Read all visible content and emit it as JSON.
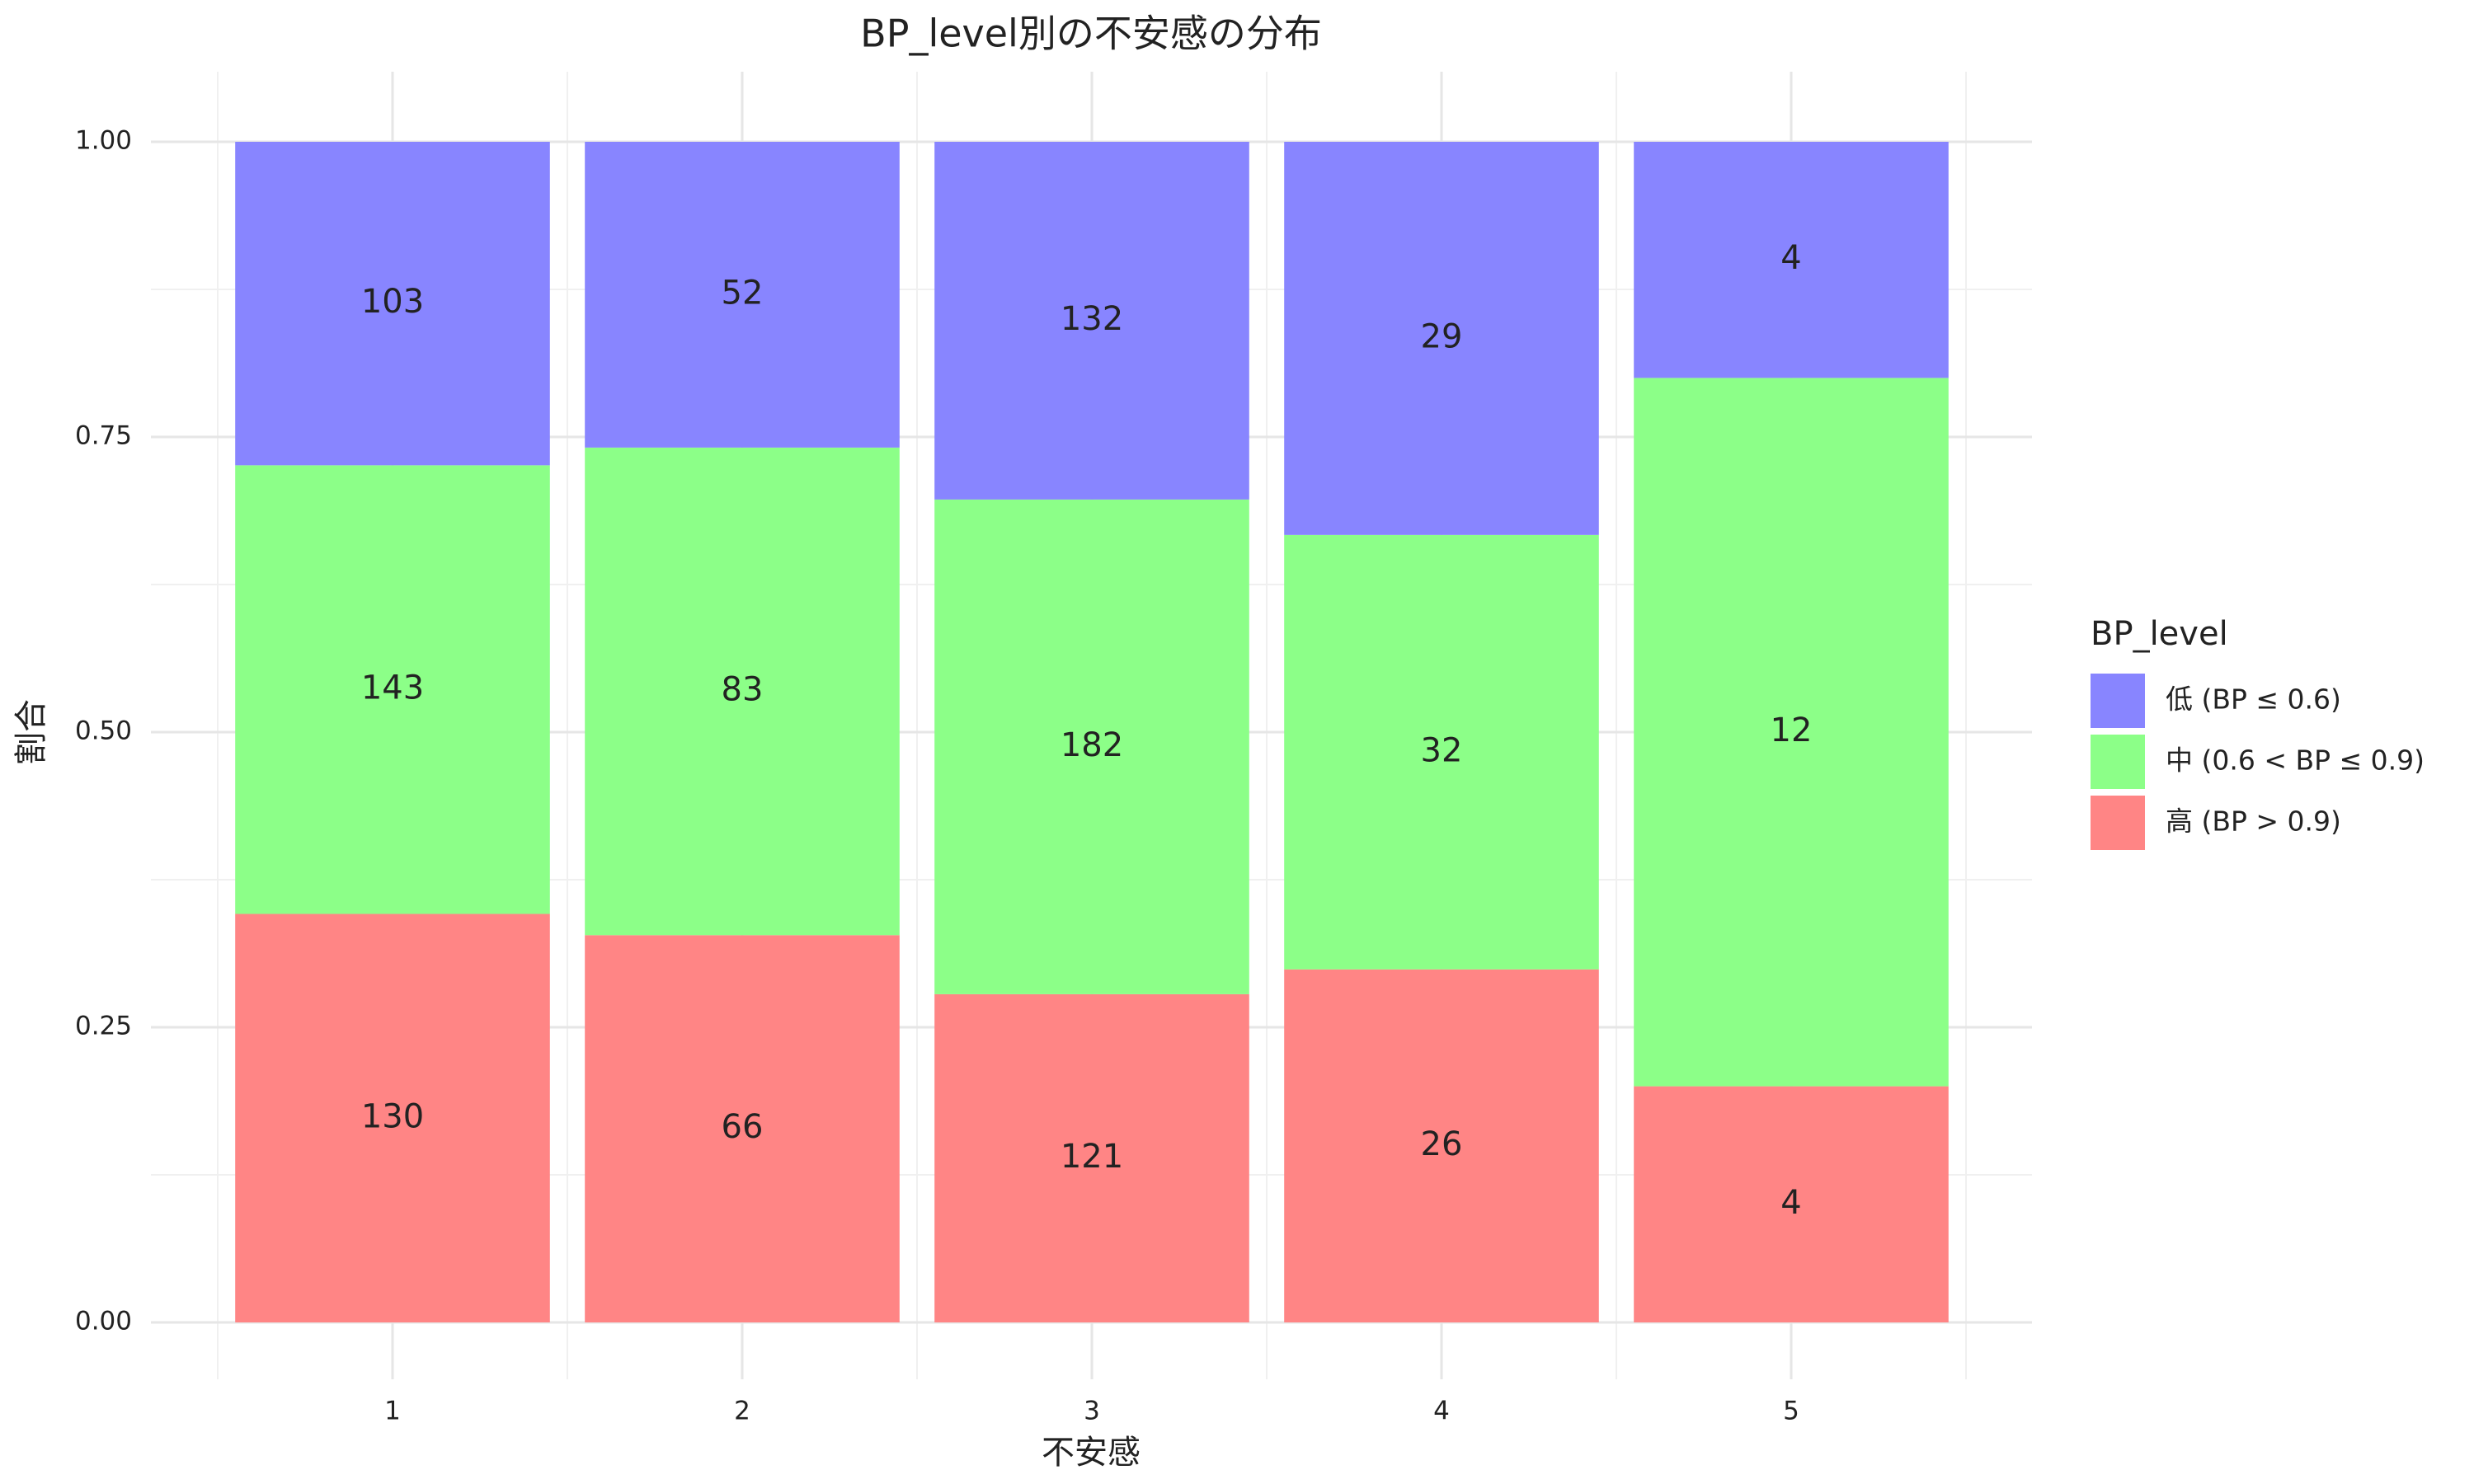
{
  "chart_data": {
    "type": "stacked_fill_bar",
    "title": "BP_level別の不安感の分布",
    "x_label": "不安感",
    "y_label": "割合",
    "legend_title": "BP_level",
    "categories": [
      "1",
      "2",
      "3",
      "4",
      "5"
    ],
    "series": [
      {
        "name": "低 (BP ≤ 0.6)",
        "color": "#8885ff",
        "values": [
          0.274,
          0.259,
          0.303,
          0.333,
          0.2
        ],
        "counts": [
          103,
          52,
          132,
          29,
          4
        ]
      },
      {
        "name": "中 (0.6 < BP ≤ 0.9)",
        "color": "#8cff88",
        "values": [
          0.38,
          0.413,
          0.419,
          0.368,
          0.6
        ],
        "counts": [
          143,
          83,
          182,
          32,
          12
        ]
      },
      {
        "name": "高 (BP > 0.9)",
        "color": "#ff8585",
        "values": [
          0.346,
          0.328,
          0.278,
          0.299,
          0.2
        ],
        "counts": [
          130,
          66,
          121,
          26,
          4
        ]
      }
    ],
    "ylim": [
      0,
      1
    ],
    "yticks": [
      {
        "value": 0,
        "label": "0.00"
      },
      {
        "value": 0.25,
        "label": "0.25"
      },
      {
        "value": 0.5,
        "label": "0.50"
      },
      {
        "value": 0.75,
        "label": "0.75"
      },
      {
        "value": 1,
        "label": "1.00"
      }
    ],
    "grid": true,
    "legend_position": "right"
  }
}
